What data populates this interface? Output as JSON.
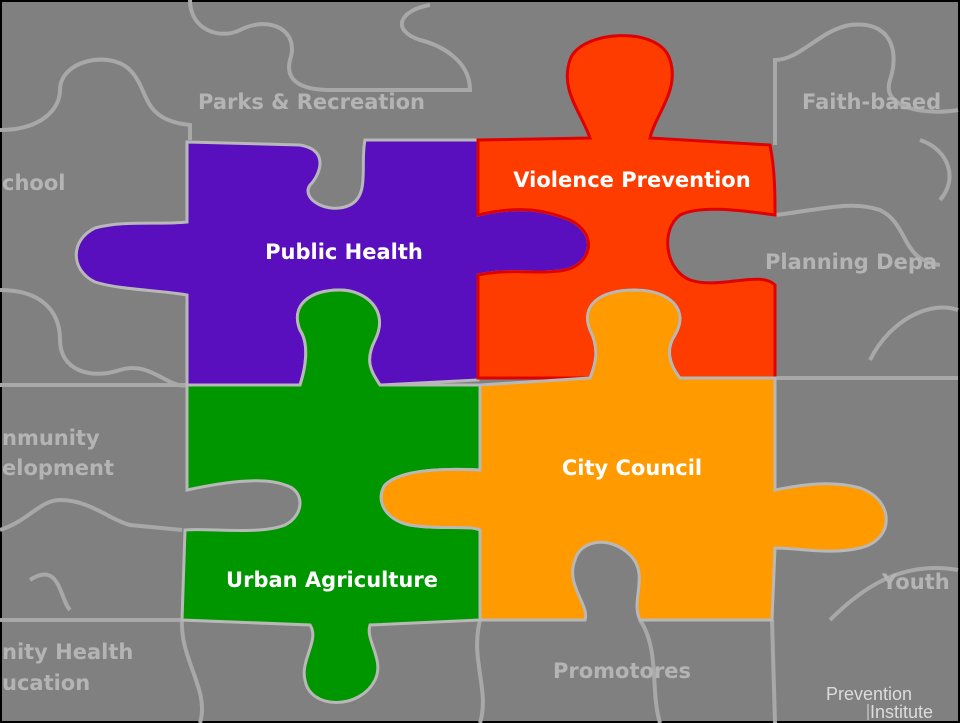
{
  "background_pieces": [
    "Parks & Recreation",
    "Faith-based",
    "chool",
    "Planning Depa",
    "nmunity",
    "elopment",
    "Youth",
    "nity Health",
    "ucation",
    "Promotores"
  ],
  "pieces": [
    "Public Health",
    "Violence Prevention",
    "City Council",
    "Urban Agriculture"
  ],
  "logo": {
    "line1": "Prevention",
    "line2": "Institute"
  }
}
